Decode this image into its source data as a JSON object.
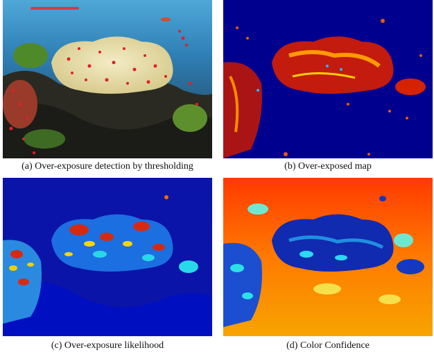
{
  "figure": {
    "panels": [
      {
        "id": "a",
        "caption": "(a) Over-exposure detection by thresholding",
        "content": "photo of coral reef aquarium with over-exposed pixels highlighted in red"
      },
      {
        "id": "b",
        "caption": "(b) Over-exposed map",
        "content": "jet colormap; dark blue background, red/orange over-exposed regions"
      },
      {
        "id": "c",
        "caption": "(c) Over-exposure likelihood",
        "content": "jet colormap; mostly blue with cyan, yellow and red patches"
      },
      {
        "id": "d",
        "caption": "(d) Color Confidence",
        "content": "jet colormap; mostly orange/red with blue and cyan regions"
      }
    ]
  }
}
